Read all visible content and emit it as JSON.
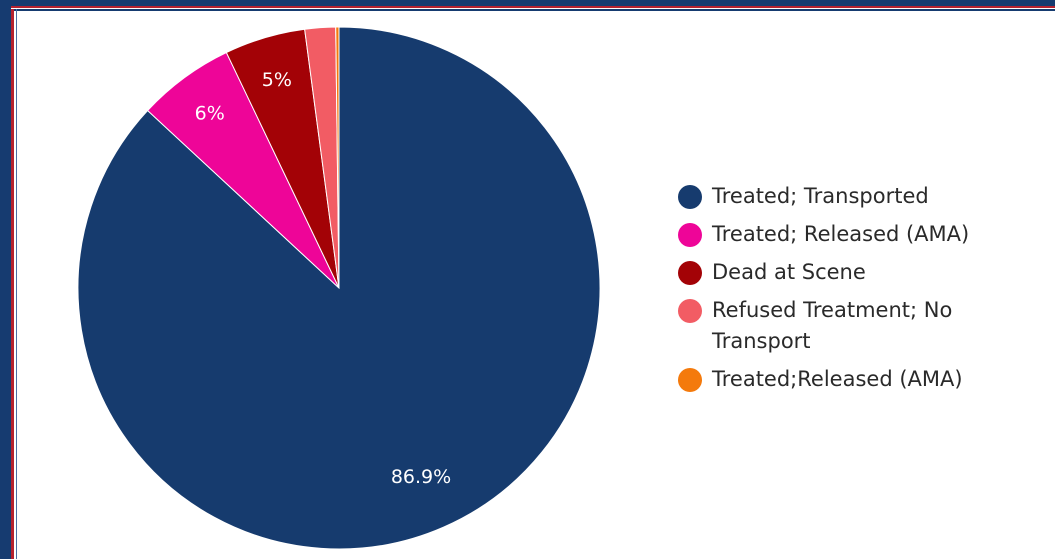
{
  "chart_data": {
    "type": "pie",
    "title": "",
    "legend_position": "right",
    "slices": [
      {
        "label": "Treated; Transported",
        "value": 86.9,
        "display": "86.9%",
        "color": "#163b6e"
      },
      {
        "label": "Treated; Released (AMA)",
        "value": 6,
        "display": "6%",
        "color": "#ee0598"
      },
      {
        "label": "Dead at Scene",
        "value": 5,
        "display": "5%",
        "color": "#a30206"
      },
      {
        "label": "Refused Treatment; No Transport",
        "value": 1.9,
        "display": "",
        "color": "#f25c64"
      },
      {
        "label": "Treated;Released (AMA)",
        "value": 0.2,
        "display": "",
        "color": "#f47a0c"
      }
    ]
  }
}
